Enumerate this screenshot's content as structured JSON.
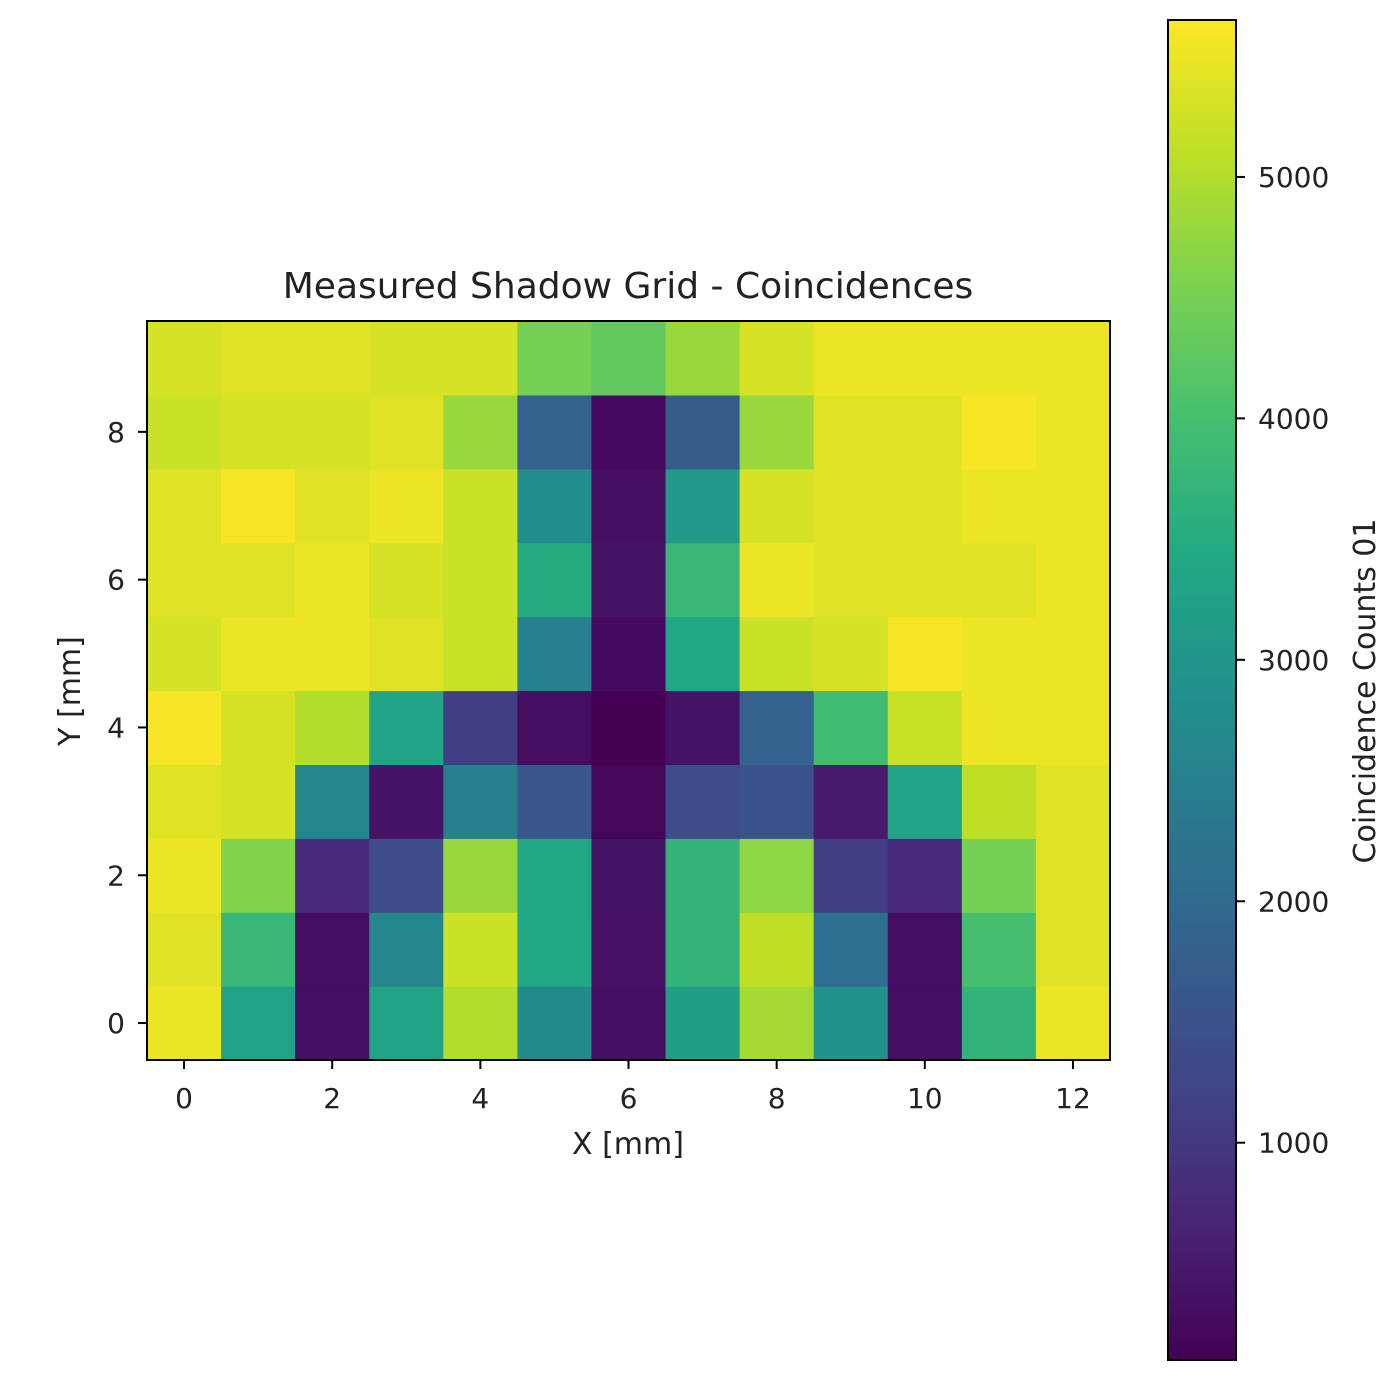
{
  "chart_data": {
    "type": "heatmap",
    "title": "Measured Shadow Grid - Coincidences",
    "xlabel": "X [mm]",
    "ylabel": "Y [mm]",
    "x": [
      0,
      1,
      2,
      3,
      4,
      5,
      6,
      7,
      8,
      9,
      10,
      11,
      12
    ],
    "y": [
      0,
      1,
      2,
      3,
      4,
      5,
      6,
      7,
      8,
      9
    ],
    "xlim": [
      -0.5,
      12.5
    ],
    "ylim": [
      -0.5,
      9.5
    ],
    "x_ticks": [
      0,
      2,
      4,
      6,
      8,
      10,
      12
    ],
    "y_ticks": [
      0,
      2,
      4,
      6,
      8
    ],
    "x_tick_labels": [
      "0",
      "2",
      "4",
      "6",
      "8",
      "10",
      "12"
    ],
    "y_tick_labels": [
      "0",
      "2",
      "4",
      "6",
      "8"
    ],
    "colormap": "viridis",
    "colorbar": {
      "label": "Coincidence Counts 01",
      "range": [
        100,
        5650
      ],
      "ticks": [
        1000,
        2000,
        3000,
        4000,
        5000
      ],
      "tick_labels": [
        "1000",
        "2000",
        "3000",
        "4000",
        "5000"
      ]
    },
    "values": [
      [
        5500,
        3300,
        300,
        3300,
        5000,
        2700,
        300,
        3200,
        4900,
        2900,
        300,
        3700,
        5500
      ],
      [
        5400,
        3800,
        300,
        2600,
        5200,
        3400,
        350,
        3700,
        5100,
        2100,
        300,
        4000,
        5400
      ],
      [
        5500,
        4600,
        800,
        1400,
        4800,
        3400,
        400,
        3700,
        4700,
        1100,
        800,
        4500,
        5400
      ],
      [
        5400,
        5300,
        2600,
        400,
        2500,
        1600,
        200,
        1400,
        1500,
        500,
        3300,
        5100,
        5400
      ],
      [
        5600,
        5300,
        5000,
        3300,
        1100,
        300,
        100,
        400,
        1800,
        3900,
        5200,
        5500,
        5500
      ],
      [
        5300,
        5500,
        5500,
        5400,
        5200,
        2500,
        250,
        3400,
        5200,
        5300,
        5600,
        5500,
        5500
      ],
      [
        5400,
        5400,
        5500,
        5300,
        5200,
        3500,
        400,
        3800,
        5500,
        5400,
        5400,
        5400,
        5500
      ],
      [
        5400,
        5600,
        5400,
        5500,
        5200,
        2800,
        300,
        3100,
        5300,
        5400,
        5400,
        5500,
        5500
      ],
      [
        5200,
        5300,
        5300,
        5400,
        4800,
        1800,
        250,
        1700,
        4800,
        5400,
        5400,
        5600,
        5500
      ],
      [
        5300,
        5400,
        5400,
        5300,
        5300,
        4500,
        4300,
        4800,
        5300,
        5500,
        5500,
        5500,
        5500
      ]
    ]
  }
}
